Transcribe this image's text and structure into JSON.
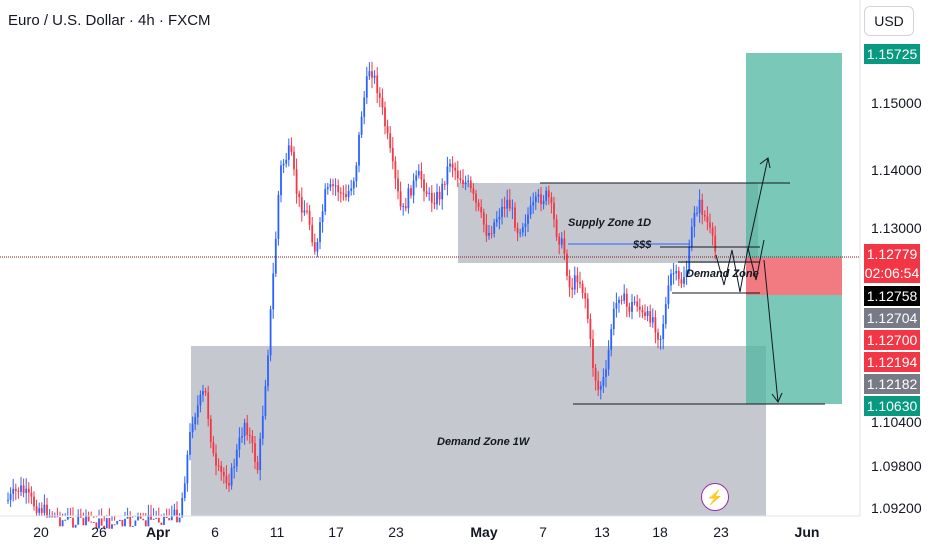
{
  "header": {
    "title": "Euro / U.S. Dollar · 4h · FXCM",
    "currency_button": "USD"
  },
  "colors": {
    "bull": "#2962ff",
    "bear": "#f23645",
    "zone_fill": "#b2b5be",
    "target_fill": "#4db6a0",
    "stop_fill": "#f0636b",
    "hline": "#7f1d1d"
  },
  "price_axis": {
    "ticks": [
      "1.15000",
      "1.14000",
      "1.13000",
      "1.10400",
      "1.09800",
      "1.09200"
    ],
    "badges": [
      {
        "label": "1.15725",
        "bg": "#089981",
        "fg": "#ffffff"
      },
      {
        "label": "1.12779",
        "bg": "#f23645",
        "fg": "#ffffff"
      },
      {
        "label": "02:06:54",
        "bg": "#f23645",
        "fg": "#ffffff"
      },
      {
        "label": "1.12758",
        "bg": "#000000",
        "fg": "#ffffff"
      },
      {
        "label": "1.12704",
        "bg": "#787b86",
        "fg": "#ffffff"
      },
      {
        "label": "1.12700",
        "bg": "#f23645",
        "fg": "#ffffff"
      },
      {
        "label": "1.12194",
        "bg": "#f23645",
        "fg": "#ffffff"
      },
      {
        "label": "1.12182",
        "bg": "#787b86",
        "fg": "#ffffff"
      },
      {
        "label": "1.10630",
        "bg": "#089981",
        "fg": "#ffffff"
      }
    ]
  },
  "time_axis": {
    "labels": [
      {
        "text": "20",
        "bold": false
      },
      {
        "text": "26",
        "bold": false
      },
      {
        "text": "Apr",
        "bold": true
      },
      {
        "text": "6",
        "bold": false
      },
      {
        "text": "11",
        "bold": false
      },
      {
        "text": "17",
        "bold": false
      },
      {
        "text": "23",
        "bold": false
      },
      {
        "text": "May",
        "bold": true
      },
      {
        "text": "7",
        "bold": false
      },
      {
        "text": "13",
        "bold": false
      },
      {
        "text": "18",
        "bold": false
      },
      {
        "text": "23",
        "bold": false
      },
      {
        "text": "Jun",
        "bold": true
      }
    ]
  },
  "annotations": {
    "supply_zone": "Supply Zone 1D",
    "liquidity": "$$$",
    "demand_zone": "Demand Zone",
    "demand_zone_weekly": "Demand Zone 1W"
  },
  "icons": {
    "flash": "lightning-icon"
  }
}
